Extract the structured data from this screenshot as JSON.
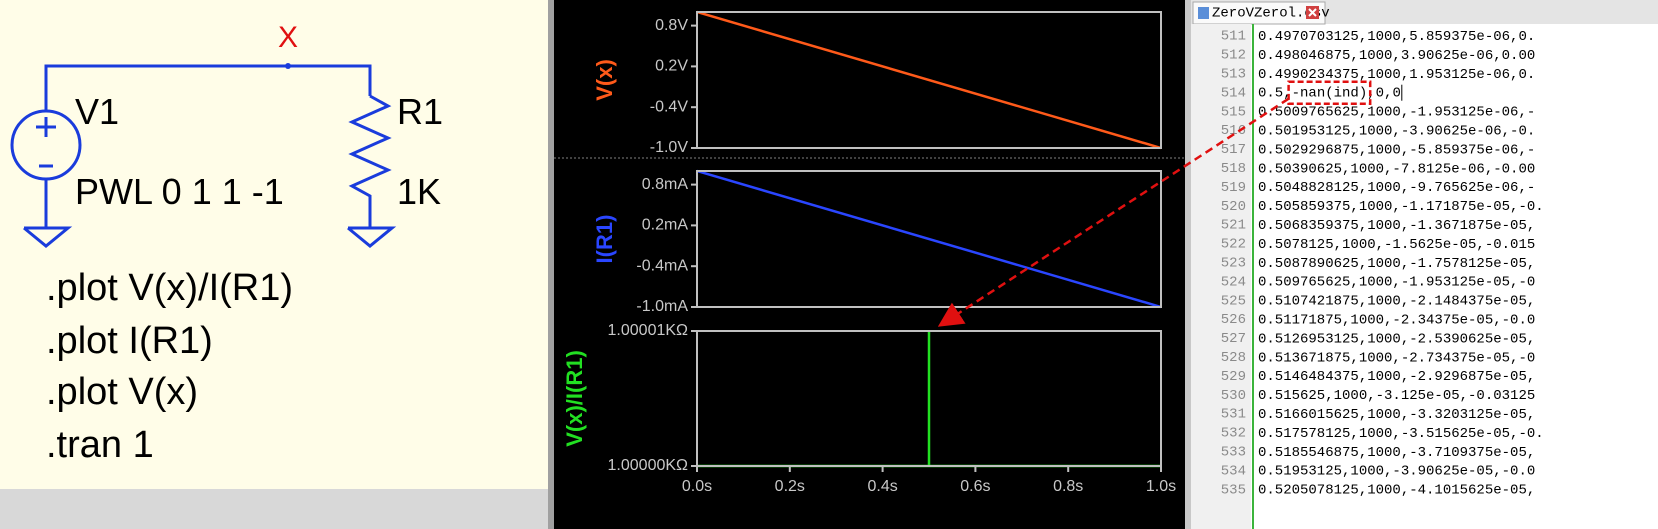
{
  "schematic": {
    "node_label": "X",
    "source_name": "V1",
    "source_value": "PWL 0 1 1 -1",
    "resistor_name": "R1",
    "resistor_value": "1K",
    "directives": [
      ".plot V(x)/I(R1)",
      ".plot I(R1)",
      ".plot V(x)",
      ".tran 1"
    ]
  },
  "chart_data": [
    {
      "type": "line",
      "y_label": "V(x)",
      "color": "#ff5a1a",
      "x": [
        0,
        1
      ],
      "values": [
        1,
        -1
      ],
      "xlim": [
        0,
        1
      ],
      "ylim": [
        -1,
        1
      ],
      "yticks": [
        {
          "value": 0.8,
          "label": "0.8V"
        },
        {
          "value": 0.2,
          "label": "0.2V"
        },
        {
          "value": -0.4,
          "label": "-0.4V"
        },
        {
          "value": -1,
          "label": "-1.0V"
        }
      ]
    },
    {
      "type": "line",
      "y_label": "I(R1)",
      "color": "#2a46ff",
      "x": [
        0,
        1
      ],
      "values": [
        1,
        -1
      ],
      "xlim": [
        0,
        1
      ],
      "ylim": [
        -1,
        1
      ],
      "yticks": [
        {
          "value": 0.8,
          "label": "0.8mA"
        },
        {
          "value": 0.2,
          "label": "0.2mA"
        },
        {
          "value": -0.4,
          "label": "-0.4mA"
        },
        {
          "value": -1,
          "label": "-1.0mA"
        }
      ]
    },
    {
      "type": "line",
      "y_label": "V(x)/I(R1)",
      "color": "#22e022",
      "x": [
        0,
        0.5,
        0.5,
        0.5,
        1
      ],
      "values": [
        1,
        1,
        1.00001,
        1,
        1
      ],
      "xlim": [
        0,
        1
      ],
      "ylim": [
        1,
        1.00001
      ],
      "yticks": [
        {
          "value": 1.00001,
          "label": "1.00001KΩ"
        },
        {
          "value": 1,
          "label": "1.00000KΩ"
        }
      ],
      "xticks": [
        {
          "value": 0,
          "label": "0.0s"
        },
        {
          "value": 0.2,
          "label": "0.2s"
        },
        {
          "value": 0.4,
          "label": "0.4s"
        },
        {
          "value": 0.6,
          "label": "0.6s"
        },
        {
          "value": 0.8,
          "label": "0.8s"
        },
        {
          "value": 1,
          "label": "1.0s"
        }
      ]
    }
  ],
  "editor": {
    "tab": "ZeroVZerol.csv",
    "lines": [
      {
        "number": "511",
        "parts": [
          "0.4970703125,1000,5.859375e-06,0."
        ]
      },
      {
        "number": "512",
        "parts": [
          "0.498046875,1000,3.90625e-06,0.00"
        ]
      },
      {
        "number": "513",
        "parts": [
          "0.4990234375,1000,1.953125e-06,0."
        ]
      },
      {
        "number": "514",
        "parts": [
          "0.5,",
          "-nan(ind)",
          ",0,0"
        ]
      },
      {
        "number": "515",
        "parts": [
          "0.5009765625,1000,-1.953125e-06,-"
        ]
      },
      {
        "number": "516",
        "parts": [
          "0.501953125,1000,-3.90625e-06,-0."
        ]
      },
      {
        "number": "517",
        "parts": [
          "0.5029296875,1000,-5.859375e-06,-"
        ]
      },
      {
        "number": "518",
        "parts": [
          "0.50390625,1000,-7.8125e-06,-0.00"
        ]
      },
      {
        "number": "519",
        "parts": [
          "0.5048828125,1000,-9.765625e-06,-"
        ]
      },
      {
        "number": "520",
        "parts": [
          "0.505859375,1000,-1.171875e-05,-0."
        ]
      },
      {
        "number": "521",
        "parts": [
          "0.5068359375,1000,-1.3671875e-05,"
        ]
      },
      {
        "number": "522",
        "parts": [
          "0.5078125,1000,-1.5625e-05,-0.015"
        ]
      },
      {
        "number": "523",
        "parts": [
          "0.5087890625,1000,-1.7578125e-05,"
        ]
      },
      {
        "number": "524",
        "parts": [
          "0.509765625,1000,-1.953125e-05,-0"
        ]
      },
      {
        "number": "525",
        "parts": [
          "0.5107421875,1000,-2.1484375e-05,"
        ]
      },
      {
        "number": "526",
        "parts": [
          "0.51171875,1000,-2.34375e-05,-0.0"
        ]
      },
      {
        "number": "527",
        "parts": [
          "0.5126953125,1000,-2.5390625e-05,"
        ]
      },
      {
        "number": "528",
        "parts": [
          "0.513671875,1000,-2.734375e-05,-0"
        ]
      },
      {
        "number": "529",
        "parts": [
          "0.5146484375,1000,-2.9296875e-05,"
        ]
      },
      {
        "number": "530",
        "parts": [
          "0.515625,1000,-3.125e-05,-0.03125"
        ]
      },
      {
        "number": "531",
        "parts": [
          "0.5166015625,1000,-3.3203125e-05,"
        ]
      },
      {
        "number": "532",
        "parts": [
          "0.517578125,1000,-3.515625e-05,-0."
        ]
      },
      {
        "number": "533",
        "parts": [
          "0.5185546875,1000,-3.7109375e-05,"
        ]
      },
      {
        "number": "534",
        "parts": [
          "0.51953125,1000,-3.90625e-05,-0.0"
        ]
      },
      {
        "number": "535",
        "parts": [
          "0.5205078125,1000,-4.1015625e-05,"
        ]
      }
    ]
  }
}
